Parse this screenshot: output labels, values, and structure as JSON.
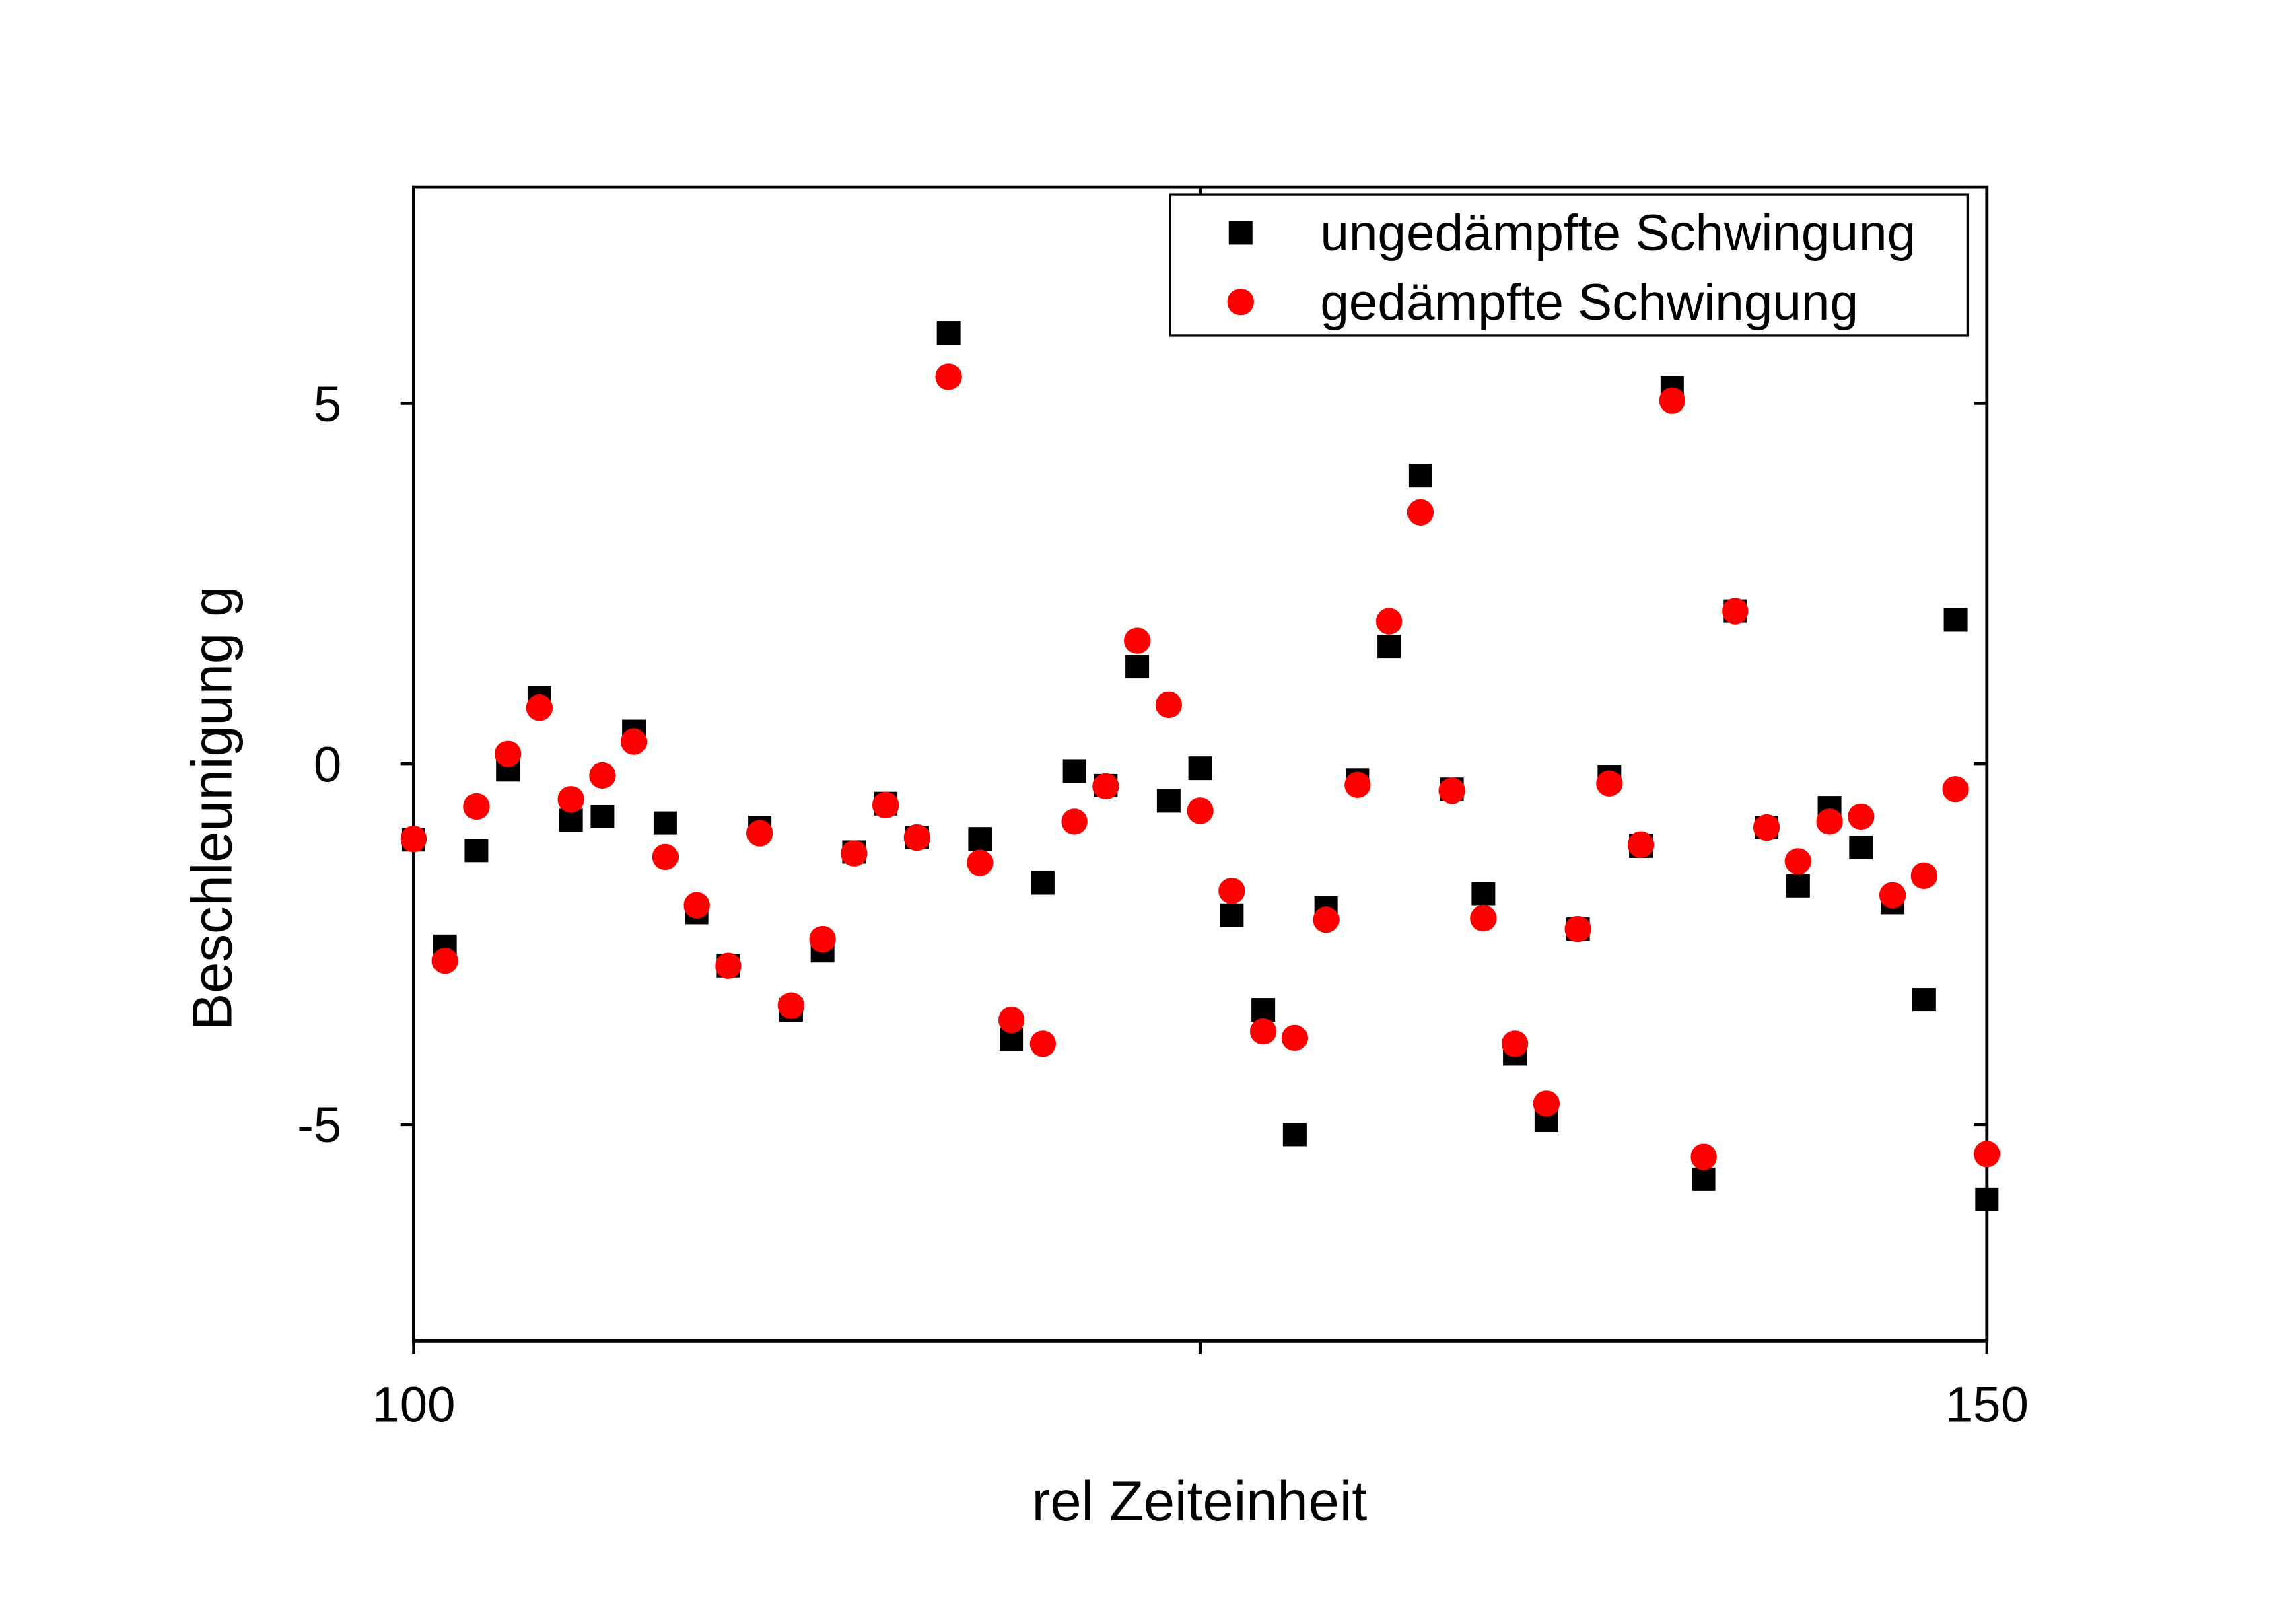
{
  "chart_data": {
    "type": "scatter",
    "title": "",
    "xlabel": "rel Zeiteinheit",
    "ylabel": "Beschleunigung g",
    "xlim": [
      100,
      150
    ],
    "ylim": [
      -8,
      8
    ],
    "x_ticks": [
      100,
      125,
      150
    ],
    "x_tick_labels": [
      "100",
      "",
      "150"
    ],
    "y_ticks": [
      -5,
      0,
      5
    ],
    "y_tick_labels": [
      "-5",
      "0",
      "5"
    ],
    "grid": false,
    "legend_position": "top-right",
    "x": [
      100,
      101,
      102,
      103,
      104,
      105,
      106,
      107,
      108,
      109,
      110,
      111,
      112,
      113,
      114,
      115,
      116,
      117,
      118,
      119,
      120,
      121,
      122,
      123,
      124,
      125,
      126,
      127,
      128,
      129,
      130,
      131,
      132,
      133,
      134,
      135,
      136,
      137,
      138,
      139,
      140,
      141,
      142,
      143,
      144,
      145,
      146,
      147,
      148,
      149,
      150
    ],
    "series": [
      {
        "name": "ungedämpfte Schwingung",
        "marker": "square",
        "color": "#000000",
        "values": [
          -1.05,
          -2.53,
          -1.2,
          -0.08,
          0.92,
          -0.78,
          -0.73,
          0.45,
          -0.82,
          -2.06,
          -2.8,
          -0.88,
          -3.41,
          -2.59,
          -1.22,
          -0.55,
          -1.02,
          5.98,
          -1.04,
          -3.82,
          -1.65,
          -0.1,
          -0.3,
          1.35,
          -0.51,
          -0.06,
          -2.1,
          -3.41,
          -5.14,
          -2.0,
          -0.22,
          1.63,
          4.0,
          -0.35,
          -1.8,
          -4.02,
          -4.94,
          -2.29,
          -0.18,
          -1.14,
          5.22,
          -5.76,
          2.12,
          -0.88,
          -1.69,
          -0.61,
          -1.16,
          -1.92,
          -3.27,
          2.0,
          -6.04
        ]
      },
      {
        "name": "gedämpfte Schwingung",
        "marker": "circle",
        "color": "#ff0000",
        "values": [
          -1.04,
          -2.73,
          -0.59,
          0.14,
          0.78,
          -0.49,
          -0.16,
          0.31,
          -1.29,
          -1.96,
          -2.8,
          -0.96,
          -3.35,
          -2.43,
          -1.24,
          -0.57,
          -1.02,
          5.37,
          -1.37,
          -3.55,
          -3.88,
          -0.8,
          -0.31,
          1.71,
          0.82,
          -0.65,
          -1.76,
          -3.71,
          -3.8,
          -2.16,
          -0.29,
          1.98,
          3.49,
          -0.37,
          -2.14,
          -3.88,
          -4.71,
          -2.29,
          -0.27,
          -1.12,
          5.04,
          -5.45,
          2.12,
          -0.88,
          -1.35,
          -0.8,
          -0.73,
          -1.82,
          -1.55,
          -0.35,
          -5.41
        ]
      }
    ]
  }
}
